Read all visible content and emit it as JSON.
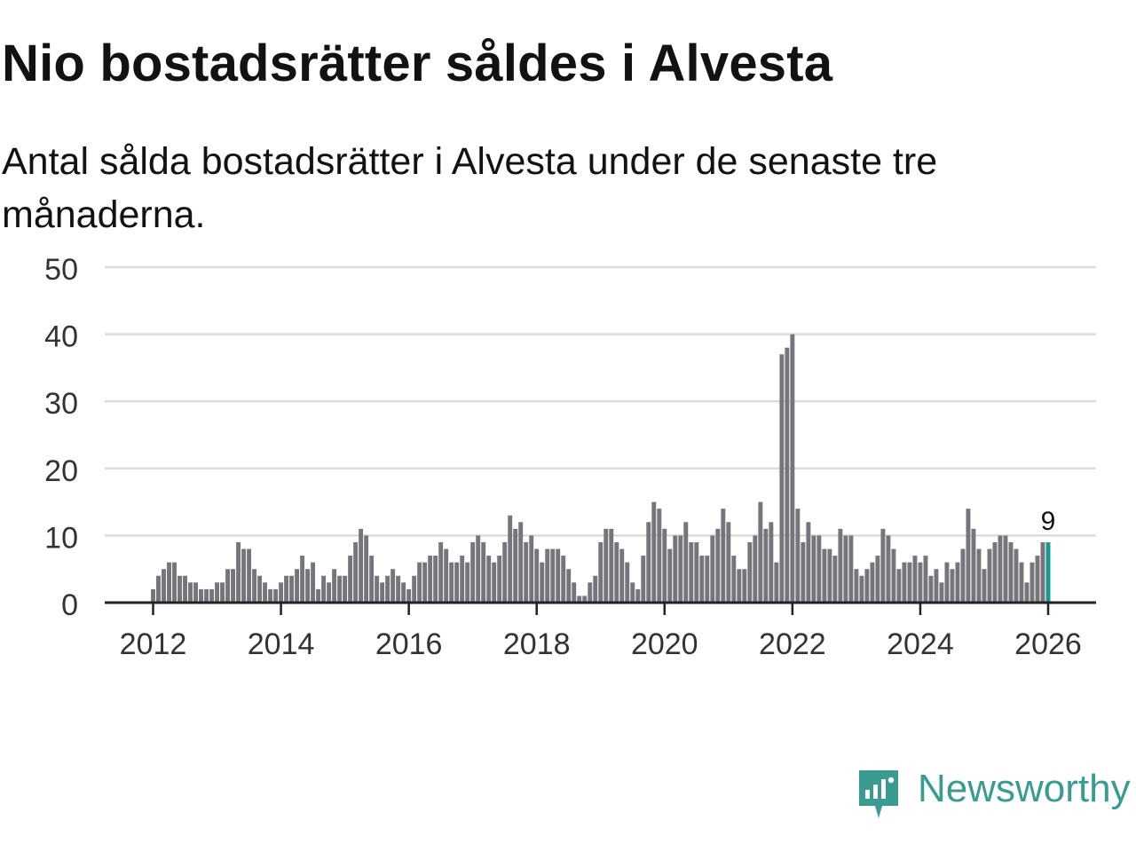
{
  "title": "Nio bostadsrätter såldes i Alvesta",
  "subtitle": "Antal sålda bostadsrätter i Alvesta under de senaste tre månaderna.",
  "brand": {
    "name": "Newsworthy",
    "color": "#3a9c91"
  },
  "colors": {
    "bar": "#77757b",
    "highlight": "#1a9a8f",
    "grid": "#dcdcdc",
    "axis": "#222222"
  },
  "chart_data": {
    "type": "bar",
    "title": "Nio bostadsrätter såldes i Alvesta",
    "subtitle": "Antal sålda bostadsrätter i Alvesta under de senaste tre månaderna.",
    "xlabel": "",
    "ylabel": "",
    "ylim": [
      0,
      50
    ],
    "yticks": [
      0,
      10,
      20,
      30,
      40,
      50
    ],
    "xticks": [
      "2012",
      "2014",
      "2016",
      "2018",
      "2020",
      "2022",
      "2024",
      "2026"
    ],
    "grid": true,
    "period": "monthly, Jan 2012 – Jan 2026",
    "highlight_label": "9",
    "values": [
      2,
      4,
      5,
      6,
      6,
      4,
      4,
      3,
      3,
      2,
      2,
      2,
      3,
      3,
      5,
      5,
      9,
      8,
      8,
      5,
      4,
      3,
      2,
      2,
      3,
      4,
      4,
      5,
      7,
      5,
      6,
      2,
      4,
      3,
      5,
      4,
      4,
      7,
      9,
      11,
      10,
      7,
      4,
      3,
      4,
      5,
      4,
      3,
      2,
      4,
      6,
      6,
      7,
      7,
      9,
      8,
      6,
      6,
      7,
      6,
      9,
      10,
      9,
      7,
      6,
      7,
      9,
      13,
      11,
      12,
      9,
      10,
      8,
      6,
      8,
      8,
      8,
      7,
      5,
      3,
      1,
      1,
      3,
      4,
      9,
      11,
      11,
      9,
      8,
      6,
      3,
      2,
      7,
      12,
      15,
      14,
      11,
      8,
      10,
      10,
      12,
      9,
      9,
      7,
      7,
      10,
      11,
      14,
      12,
      7,
      5,
      5,
      9,
      10,
      15,
      11,
      12,
      6,
      37,
      38,
      40,
      14,
      9,
      12,
      10,
      10,
      8,
      8,
      7,
      11,
      10,
      10,
      5,
      4,
      5,
      6,
      7,
      11,
      10,
      8,
      5,
      6,
      6,
      7,
      6,
      7,
      4,
      5,
      3,
      6,
      5,
      6,
      8,
      14,
      11,
      8,
      5,
      8,
      9,
      10,
      10,
      9,
      8,
      6,
      3,
      6,
      7,
      9,
      9
    ]
  }
}
